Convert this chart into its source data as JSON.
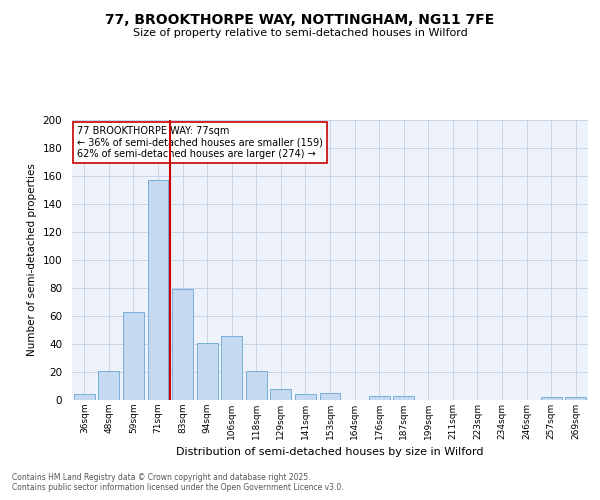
{
  "title": "77, BROOKTHORPE WAY, NOTTINGHAM, NG11 7FE",
  "subtitle": "Size of property relative to semi-detached houses in Wilford",
  "xlabel": "Distribution of semi-detached houses by size in Wilford",
  "ylabel": "Number of semi-detached properties",
  "bar_color": "#c5d9f0",
  "bar_edge_color": "#7aaed6",
  "grid_color": "#c8d4e8",
  "background_color": "#eef2fa",
  "categories": [
    "36sqm",
    "48sqm",
    "59sqm",
    "71sqm",
    "83sqm",
    "94sqm",
    "106sqm",
    "118sqm",
    "129sqm",
    "141sqm",
    "153sqm",
    "164sqm",
    "176sqm",
    "187sqm",
    "199sqm",
    "211sqm",
    "223sqm",
    "234sqm",
    "246sqm",
    "257sqm",
    "269sqm"
  ],
  "values": [
    4,
    21,
    63,
    157,
    79,
    41,
    46,
    21,
    8,
    4,
    5,
    0,
    3,
    3,
    0,
    0,
    0,
    0,
    0,
    2,
    2
  ],
  "red_line_x": 3.5,
  "red_line_label": "77 BROOKTHORPE WAY: 77sqm",
  "smaller_pct": 36,
  "smaller_count": 159,
  "larger_pct": 62,
  "larger_count": 274,
  "annotation_box_color": "#ffffff",
  "annotation_box_edge": "#cc0000",
  "red_line_color": "#cc0000",
  "ylim_max": 200,
  "yticks": [
    0,
    20,
    40,
    60,
    80,
    100,
    120,
    140,
    160,
    180,
    200
  ],
  "footnote1": "Contains HM Land Registry data © Crown copyright and database right 2025.",
  "footnote2": "Contains public sector information licensed under the Open Government Licence v3.0."
}
